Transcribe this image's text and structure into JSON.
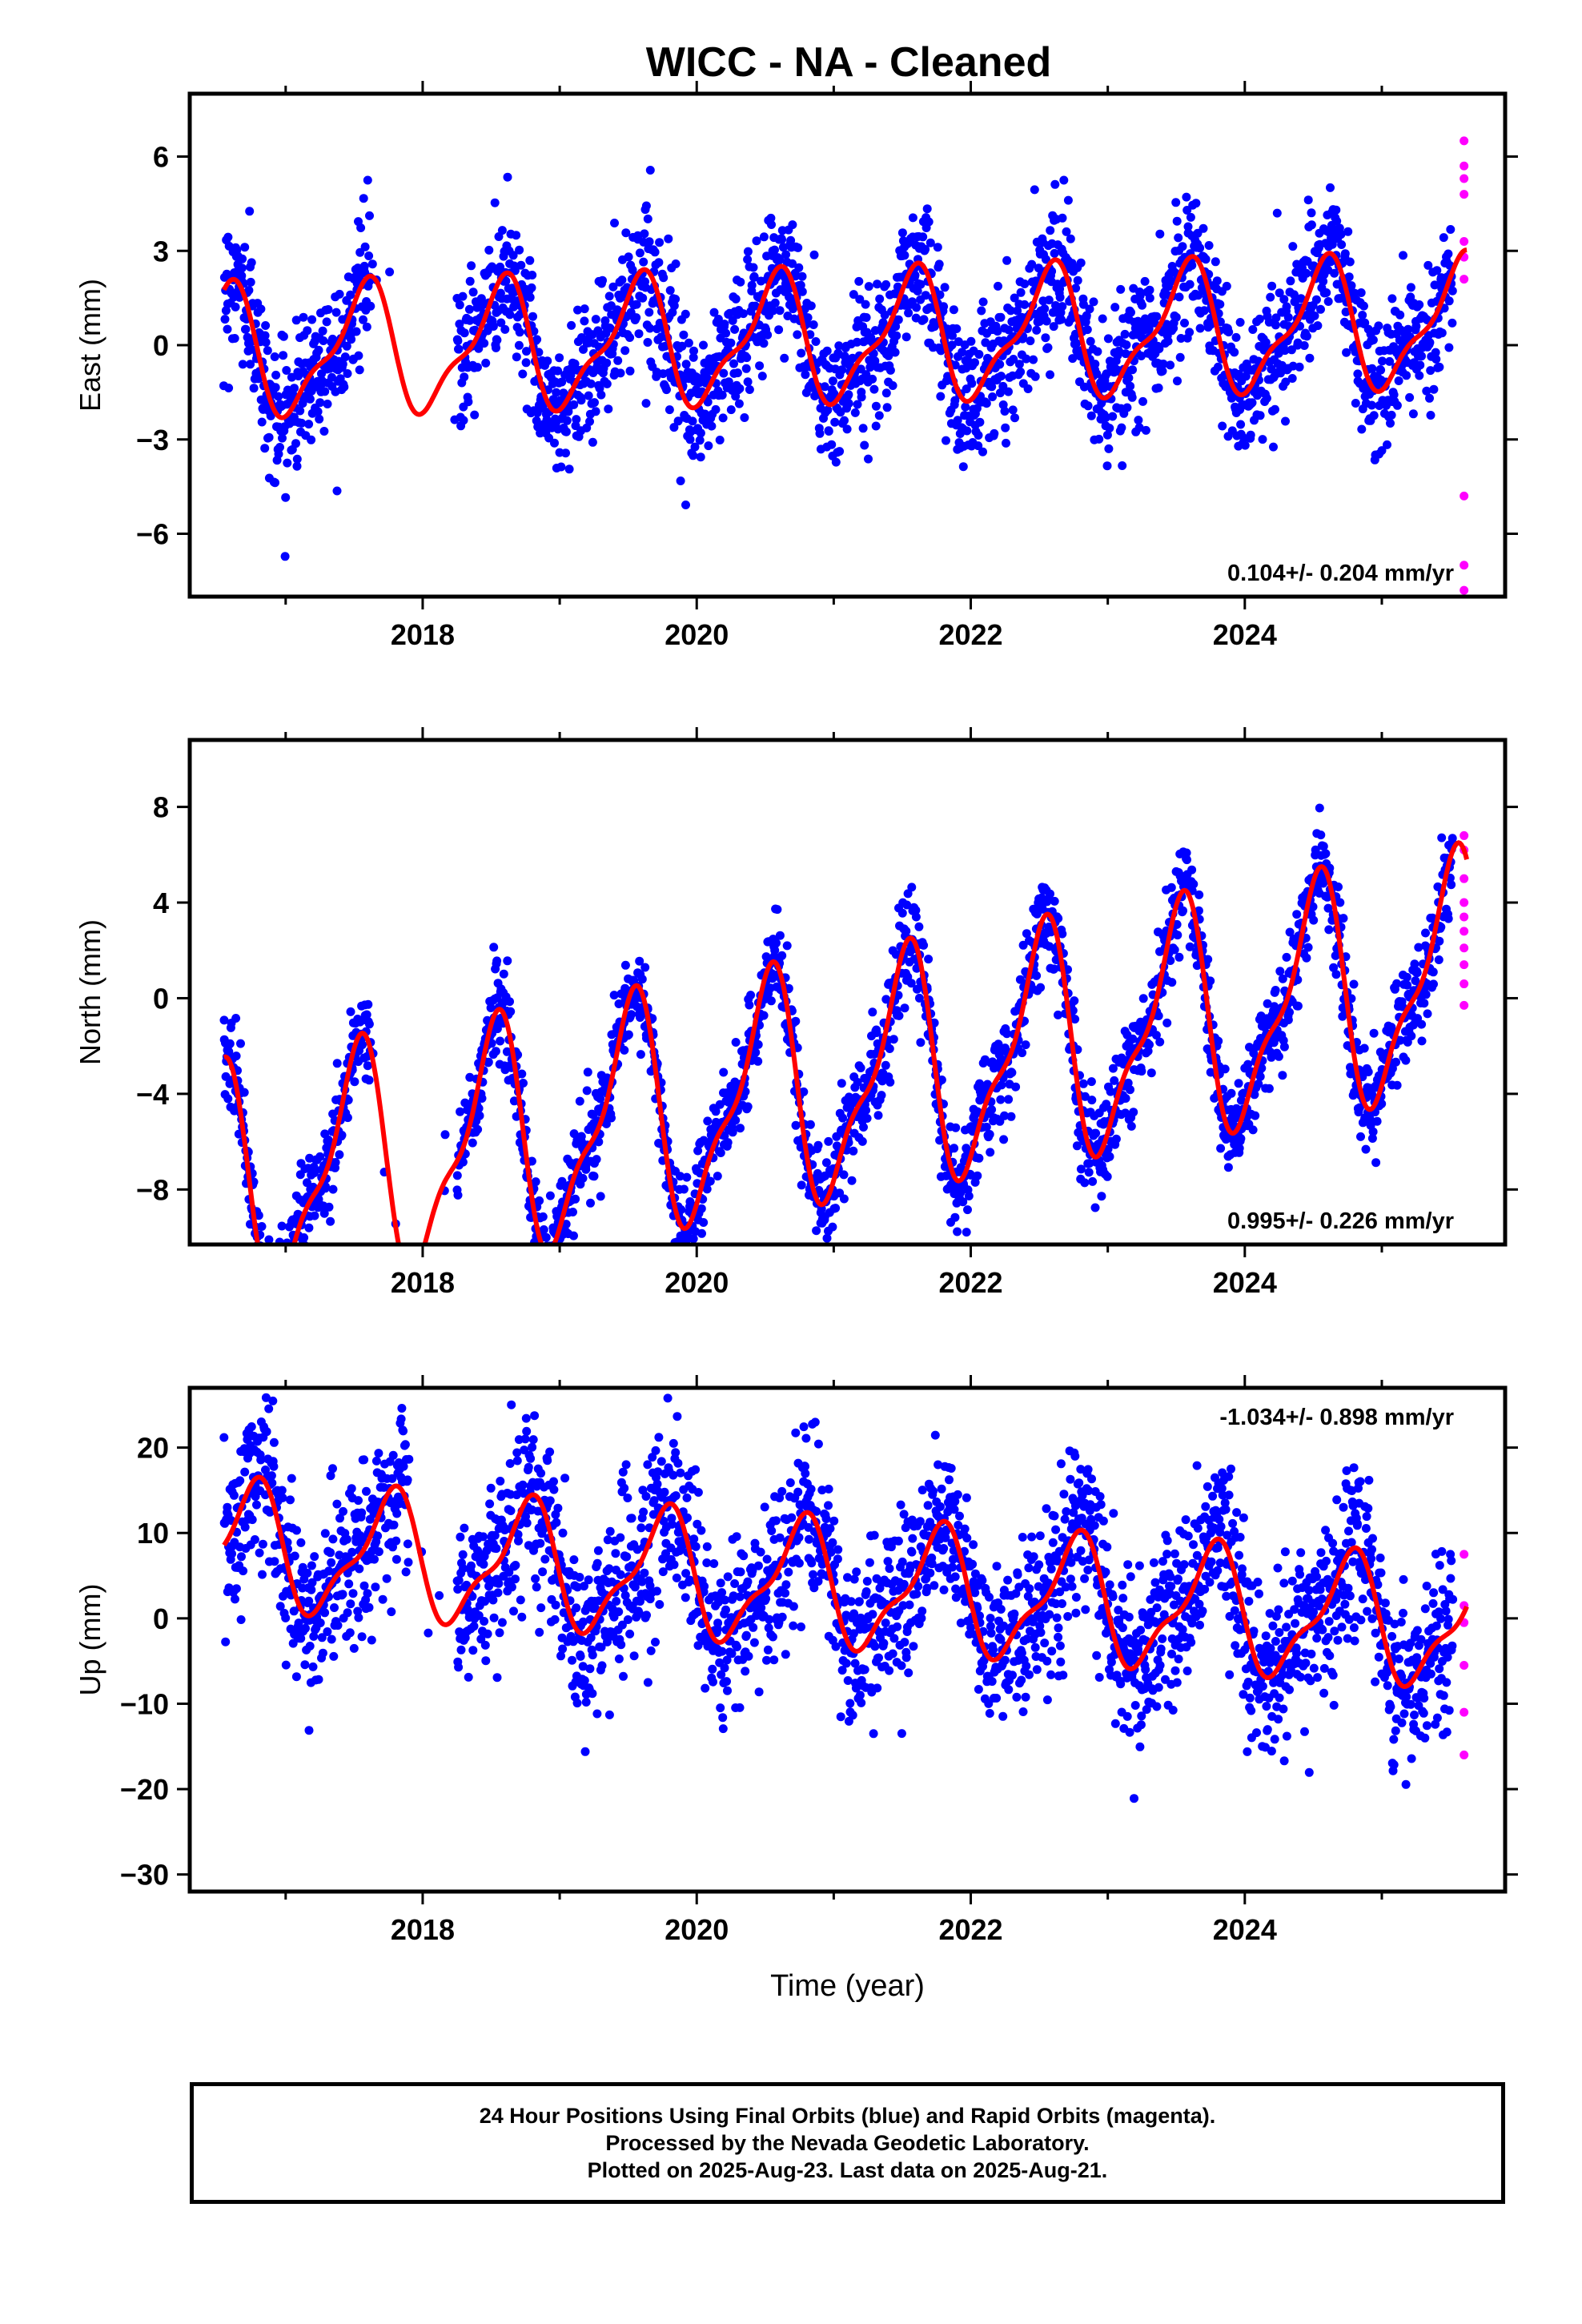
{
  "title": "WICC  - NA - Cleaned",
  "colors": {
    "final_orbits": "#0000ff",
    "rapid_orbits": "#ff00ff",
    "model_fit": "#ff0000",
    "frame": "#000000"
  },
  "chart_data": [
    {
      "type": "scatter",
      "title": "WICC  - NA - Cleaned",
      "ylabel": "East (mm)",
      "xlabel": "",
      "xlim": [
        2016.3,
        2025.9
      ],
      "ylim": [
        -8,
        8
      ],
      "xticks": [
        "2018",
        "2020",
        "2022",
        "2024"
      ],
      "yticks": [
        "6",
        "3",
        "0",
        "-3",
        "-6"
      ],
      "annotation": "0.104+/- 0.204 mm/yr",
      "series": [
        {
          "name": "Final Orbits",
          "color": "#0000ff",
          "start": 2016.55,
          "end": 2025.52,
          "amplitude": 1.9,
          "phase": 2017.56,
          "offset": 0.2,
          "trend": 0.104,
          "noise": 1.1,
          "gaps": [
            [
              2017.62,
              2018.25
            ]
          ]
        },
        {
          "name": "Rapid Orbits",
          "color": "#ff00ff",
          "points": [
            [
              2025.6,
              6.5
            ],
            [
              2025.6,
              5.7
            ],
            [
              2025.6,
              5.3
            ],
            [
              2025.6,
              4.8
            ],
            [
              2025.6,
              3.3
            ],
            [
              2025.6,
              2.8
            ],
            [
              2025.6,
              2.1
            ],
            [
              2025.6,
              -4.8
            ],
            [
              2025.6,
              -7.0
            ],
            [
              2025.6,
              -7.8
            ]
          ]
        },
        {
          "name": "Model Fit",
          "color": "#ff0000",
          "line": true,
          "amplitude": 1.9,
          "phase": 2017.56,
          "offset": 0.2,
          "trend": 0.104
        }
      ]
    },
    {
      "type": "scatter",
      "ylabel": "North (mm)",
      "xlabel": "",
      "xlim": [
        2016.3,
        2025.9
      ],
      "ylim": [
        -10.3,
        10.8
      ],
      "xticks": [
        "2018",
        "2020",
        "2022",
        "2024"
      ],
      "yticks": [
        "8",
        "4",
        "0",
        "-4",
        "-8"
      ],
      "annotation": "0.995+/- 0.226 mm/yr",
      "series": [
        {
          "name": "Final Orbits",
          "color": "#0000ff",
          "start": 2016.55,
          "end": 2025.52,
          "amplitude": 4.5,
          "phase": 2017.5,
          "offset": -3.6,
          "trend": 0.995,
          "noise": 1.0,
          "gaps": [
            [
              2017.62,
              2018.25
            ]
          ]
        },
        {
          "name": "Rapid Orbits",
          "color": "#ff00ff",
          "points": [
            [
              2025.6,
              6.8
            ],
            [
              2025.6,
              6.2
            ],
            [
              2025.6,
              5.0
            ],
            [
              2025.6,
              4.0
            ],
            [
              2025.6,
              3.4
            ],
            [
              2025.6,
              2.8
            ],
            [
              2025.6,
              2.1
            ],
            [
              2025.6,
              1.4
            ],
            [
              2025.6,
              0.6
            ],
            [
              2025.6,
              -0.3
            ]
          ]
        },
        {
          "name": "Model Fit",
          "color": "#ff0000",
          "line": true,
          "amplitude": 4.5,
          "phase": 2017.5,
          "offset": -3.6,
          "trend": 0.995
        }
      ]
    },
    {
      "type": "scatter",
      "ylabel": "Up (mm)",
      "xlabel": "Time (year)",
      "xlim": [
        2016.3,
        2025.9
      ],
      "ylim": [
        -32,
        27
      ],
      "xticks": [
        "2018",
        "2020",
        "2022",
        "2024"
      ],
      "yticks": [
        "20",
        "10",
        "0",
        "-10",
        "-20",
        "-30"
      ],
      "annotation": "-1.034+/- 0.898 mm/yr",
      "series": [
        {
          "name": "Final Orbits",
          "color": "#0000ff",
          "start": 2016.55,
          "end": 2025.52,
          "amplitude": 6.8,
          "phase": 2016.75,
          "offset": 3.8,
          "trend": -1.034,
          "noise": 5.0,
          "gaps": [
            [
              2017.9,
              2018.25
            ]
          ]
        },
        {
          "name": "Rapid Orbits",
          "color": "#ff00ff",
          "points": [
            [
              2025.6,
              7.5
            ],
            [
              2025.6,
              1.5
            ],
            [
              2025.6,
              -0.5
            ],
            [
              2025.6,
              -5.5
            ],
            [
              2025.6,
              -11.0
            ],
            [
              2025.6,
              -16.0
            ]
          ]
        },
        {
          "name": "Model Fit",
          "color": "#ff0000",
          "line": true,
          "amplitude": 6.8,
          "phase": 2016.75,
          "offset": 3.8,
          "trend": -1.034
        }
      ]
    }
  ],
  "footer": {
    "line1": "24 Hour Positions Using Final Orbits (blue) and Rapid Orbits (magenta).",
    "line2": "Processed by the Nevada Geodetic Laboratory.",
    "line3": "Plotted on 2025-Aug-23. Last data on 2025-Aug-21."
  }
}
